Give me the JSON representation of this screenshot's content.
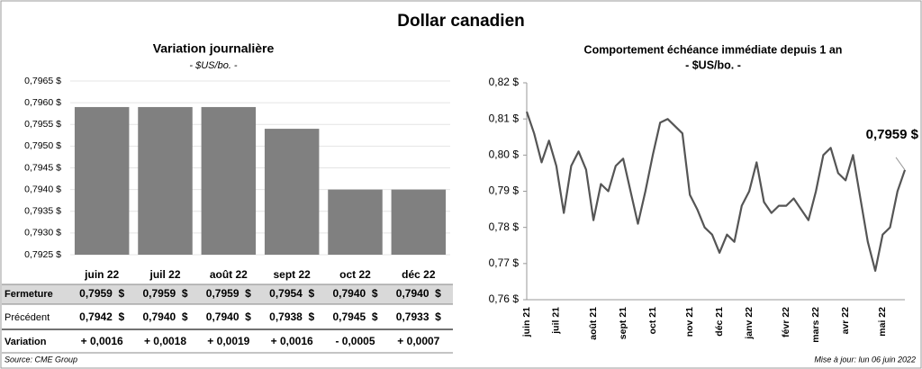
{
  "title": "Dollar canadien",
  "chart_data": [
    {
      "type": "bar",
      "title": "Variation  journalière",
      "subtitle": "- $US/bo. -",
      "categories": [
        "juin 22",
        "juil 22",
        "août 22",
        "sept 22",
        "oct 22",
        "déc 22"
      ],
      "values": [
        0.7959,
        0.7959,
        0.7959,
        0.7954,
        0.794,
        0.794
      ],
      "color": "#808080",
      "grid": true,
      "ylim": [
        0.7925,
        0.7965
      ],
      "yticks": [
        {
          "value": 0.7925,
          "label": "0,7925 $"
        },
        {
          "value": 0.793,
          "label": "0,7930 $"
        },
        {
          "value": 0.7935,
          "label": "0,7935 $"
        },
        {
          "value": 0.794,
          "label": "0,7940 $"
        },
        {
          "value": 0.7945,
          "label": "0,7945 $"
        },
        {
          "value": 0.795,
          "label": "0,7950 $"
        },
        {
          "value": 0.7955,
          "label": "0,7955 $"
        },
        {
          "value": 0.796,
          "label": "0,7960 $"
        },
        {
          "value": 0.7965,
          "label": "0,7965 $"
        }
      ]
    },
    {
      "type": "line",
      "title": "Comportement échéance immédiate depuis 1 an",
      "subtitle": "- $US/bo. -",
      "categories": [
        "juin 21",
        null,
        null,
        null,
        "juil 21",
        null,
        null,
        null,
        null,
        "août 21",
        null,
        null,
        null,
        "sept 21",
        null,
        null,
        null,
        "oct 21",
        null,
        null,
        null,
        null,
        "nov 21",
        null,
        null,
        null,
        "déc 21",
        null,
        null,
        null,
        "janv 22",
        null,
        null,
        null,
        null,
        "févr 22",
        null,
        null,
        null,
        "mars 22",
        null,
        null,
        null,
        "avr 22",
        null,
        null,
        null,
        null,
        "mai 22",
        null,
        null,
        null
      ],
      "series": [
        {
          "color": "#555555",
          "values": [
            0.812,
            0.806,
            0.798,
            0.804,
            0.797,
            0.784,
            0.797,
            0.801,
            0.796,
            0.782,
            0.792,
            0.79,
            0.797,
            0.799,
            0.79,
            0.781,
            0.79,
            0.8,
            0.809,
            0.81,
            0.808,
            0.806,
            0.789,
            0.785,
            0.78,
            0.778,
            0.773,
            0.778,
            0.776,
            0.786,
            0.79,
            0.798,
            0.787,
            0.784,
            0.786,
            0.786,
            0.788,
            0.785,
            0.782,
            0.79,
            0.8,
            0.802,
            0.795,
            0.793,
            0.8,
            0.788,
            0.776,
            0.768,
            0.778,
            0.78,
            0.79,
            0.7959
          ]
        }
      ],
      "annotation": "0,7959 $",
      "ylim": [
        0.76,
        0.82
      ],
      "yticks": [
        {
          "value": 0.76,
          "label": "0,76 $"
        },
        {
          "value": 0.77,
          "label": "0,77 $"
        },
        {
          "value": 0.78,
          "label": "0,78 $"
        },
        {
          "value": 0.79,
          "label": "0,79 $"
        },
        {
          "value": 0.8,
          "label": "0,80 $"
        },
        {
          "value": 0.81,
          "label": "0,81 $"
        },
        {
          "value": 0.82,
          "label": "0,82 $"
        }
      ]
    }
  ],
  "table": {
    "rows": [
      {
        "label": "Fermeture",
        "cells": [
          "0,7959  $",
          "0,7959  $",
          "0,7959  $",
          "0,7954  $",
          "0,7940  $",
          "0,7940  $"
        ]
      },
      {
        "label": "Précédent",
        "cells": [
          "0,7942  $",
          "0,7940  $",
          "0,7940  $",
          "0,7938  $",
          "0,7945  $",
          "0,7933  $"
        ]
      },
      {
        "label": "Variation",
        "cells": [
          "+ 0,0016",
          "+ 0,0018",
          "+ 0,0019",
          "+ 0,0016",
          "- 0,0005",
          "+ 0,0007"
        ],
        "colors": [
          "#1e8c1e",
          "#1e8c1e",
          "#1e8c1e",
          "#1e8c1e",
          "#e02020",
          "#1e8c1e"
        ]
      }
    ]
  },
  "source": "Source: CME Group",
  "updated": "Mise à jour: lun 06 juin 2022"
}
